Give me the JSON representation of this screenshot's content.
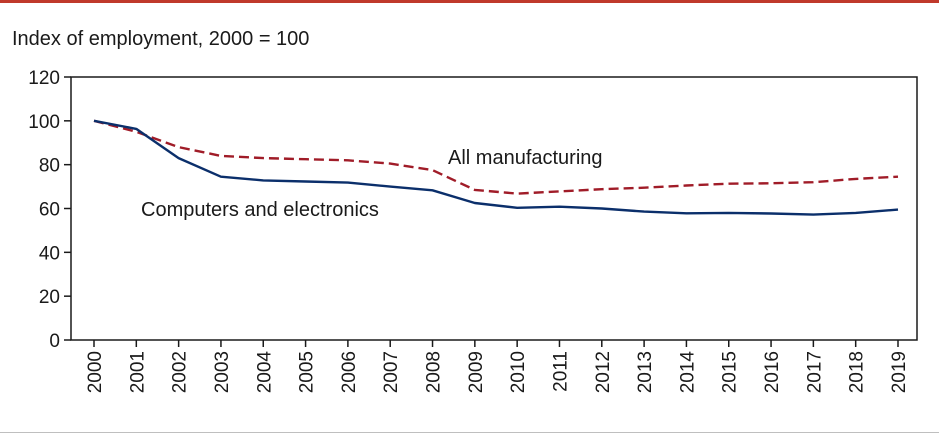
{
  "colors": {
    "top_rule": "#c0392b",
    "all_manufacturing": "#a01c28",
    "computers_electronics": "#0b2f6b",
    "axis": "#1a1a1a"
  },
  "chart_data": {
    "type": "line",
    "title": "Index of employment, 2000 = 100",
    "xlabel": "",
    "ylabel": "",
    "x": [
      "2000",
      "2001",
      "2002",
      "2003",
      "2004",
      "2005",
      "2006",
      "2007",
      "2008",
      "2009",
      "2010",
      "2011",
      "2012",
      "2013",
      "2014",
      "2015",
      "2016",
      "2017",
      "2018",
      "2019"
    ],
    "ylim": [
      0,
      120
    ],
    "yticks": [
      0,
      20,
      40,
      60,
      80,
      100,
      120
    ],
    "grid": false,
    "series": [
      {
        "name": "All manufacturing",
        "style": "dashed",
        "color": "#a01c28",
        "values": [
          100,
          95,
          88,
          84,
          83,
          82.5,
          82,
          80.5,
          77.5,
          68.5,
          66.8,
          67.8,
          68.8,
          69.5,
          70.5,
          71.3,
          71.5,
          72,
          73.5,
          74.5
        ]
      },
      {
        "name": "Computers and electronics",
        "style": "solid",
        "color": "#0b2f6b",
        "values": [
          100,
          96.3,
          83,
          74.5,
          72.8,
          72.3,
          71.8,
          70,
          68.3,
          62.5,
          60.3,
          60.8,
          60,
          58.6,
          57.8,
          58,
          57.7,
          57.2,
          58,
          59.5
        ]
      }
    ]
  }
}
